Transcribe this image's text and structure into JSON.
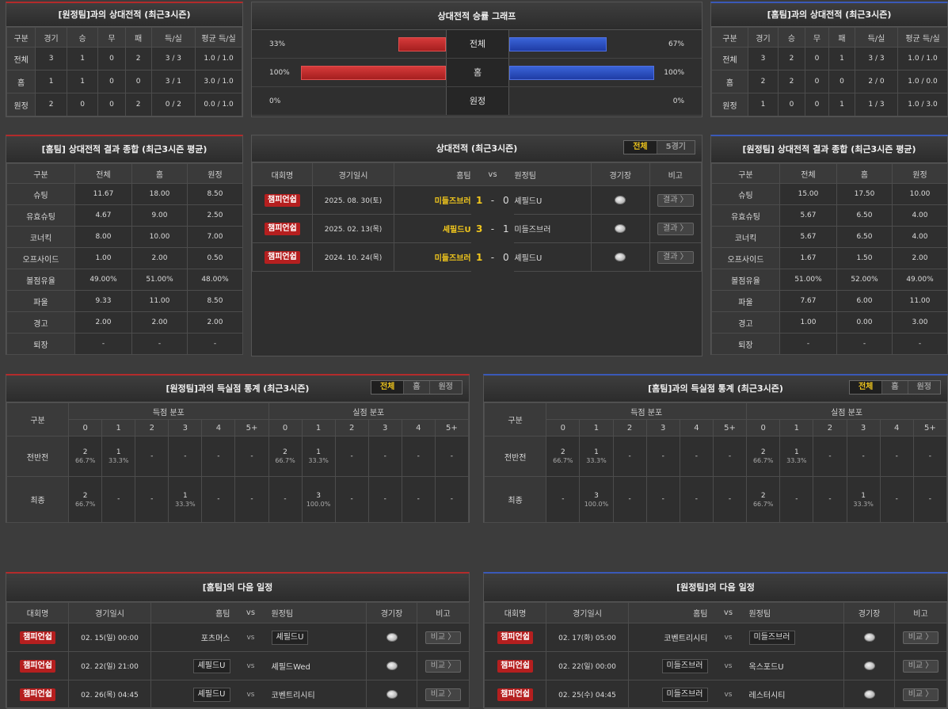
{
  "h2h_away": {
    "title": "[원정팀]과의 상대전적 (최근3시즌)",
    "headers": [
      "구분",
      "경기",
      "승",
      "무",
      "패",
      "득/실",
      "평균 득/실"
    ],
    "rows": [
      [
        "전체",
        "3",
        "1",
        "0",
        "2",
        "3 / 3",
        "1.0 / 1.0"
      ],
      [
        "홈",
        "1",
        "1",
        "0",
        "0",
        "3 / 1",
        "3.0 / 1.0"
      ],
      [
        "원정",
        "2",
        "0",
        "0",
        "2",
        "0 / 2",
        "0.0 / 1.0"
      ]
    ]
  },
  "graph": {
    "title": "상대전적 승률 그래프",
    "rows": [
      {
        "label": "전체",
        "left": "33%",
        "right": "67%",
        "lv": 33,
        "rv": 67
      },
      {
        "label": "홈",
        "left": "100%",
        "right": "100%",
        "lv": 100,
        "rv": 100
      },
      {
        "label": "원정",
        "left": "0%",
        "right": "0%",
        "lv": 0,
        "rv": 0
      }
    ],
    "colors": {
      "home": "#c62828",
      "away": "#2846c0"
    }
  },
  "h2h_home": {
    "title": "[홈팀]과의 상대전적 (최근3시즌)",
    "headers": [
      "구분",
      "경기",
      "승",
      "무",
      "패",
      "득/실",
      "평균 득/실"
    ],
    "rows": [
      [
        "전체",
        "3",
        "2",
        "0",
        "1",
        "3 / 3",
        "1.0 / 1.0"
      ],
      [
        "홈",
        "2",
        "2",
        "0",
        "0",
        "2 / 0",
        "1.0 / 0.0"
      ],
      [
        "원정",
        "1",
        "0",
        "0",
        "1",
        "1 / 3",
        "1.0 / 3.0"
      ]
    ]
  },
  "summary_home": {
    "title": "[홈팀] 상대전적 결과 종합 (최근3시즌 평균)",
    "headers": [
      "구분",
      "전체",
      "홈",
      "원정"
    ],
    "rows": [
      [
        "슈팅",
        "11.67",
        "18.00",
        "8.50"
      ],
      [
        "유효슈팅",
        "4.67",
        "9.00",
        "2.50"
      ],
      [
        "코너킥",
        "8.00",
        "10.00",
        "7.00"
      ],
      [
        "오프사이드",
        "1.00",
        "2.00",
        "0.50"
      ],
      [
        "볼점유율",
        "49.00%",
        "51.00%",
        "48.00%"
      ],
      [
        "파울",
        "9.33",
        "11.00",
        "8.50"
      ],
      [
        "경고",
        "2.00",
        "2.00",
        "2.00"
      ],
      [
        "퇴장",
        "-",
        "-",
        "-"
      ]
    ]
  },
  "recent": {
    "title": "상대전적 (최근3시즌)",
    "tabs": [
      "전체",
      "5경기"
    ],
    "headers": [
      "대회명",
      "경기일시",
      "홈팀",
      "vs",
      "원정팀",
      "경기장",
      "비고"
    ],
    "matches": [
      {
        "league": "챔피언쉽",
        "date": "2025. 08. 30(토)",
        "home": "미들즈브러",
        "hs": "1",
        "sep": "-",
        "as": "0",
        "away": "셰필드U",
        "btn": "결과 〉"
      },
      {
        "league": "챔피언쉽",
        "date": "2025. 02. 13(목)",
        "home": "셰필드U",
        "hs": "3",
        "sep": "-",
        "as": "1",
        "away": "미들즈브러",
        "btn": "결과 〉"
      },
      {
        "league": "챔피언쉽",
        "date": "2024. 10. 24(목)",
        "home": "미들즈브러",
        "hs": "1",
        "sep": "-",
        "as": "0",
        "away": "셰필드U",
        "btn": "결과 〉"
      }
    ]
  },
  "summary_away": {
    "title": "[원정팀] 상대전적 결과 종합 (최근3시즌 평균)",
    "headers": [
      "구분",
      "전체",
      "홈",
      "원정"
    ],
    "rows": [
      [
        "슈팅",
        "15.00",
        "17.50",
        "10.00"
      ],
      [
        "유효슈팅",
        "5.67",
        "6.50",
        "4.00"
      ],
      [
        "코너킥",
        "5.67",
        "6.50",
        "4.00"
      ],
      [
        "오프사이드",
        "1.67",
        "1.50",
        "2.00"
      ],
      [
        "볼점유율",
        "51.00%",
        "52.00%",
        "49.00%"
      ],
      [
        "파울",
        "7.67",
        "6.00",
        "11.00"
      ],
      [
        "경고",
        "1.00",
        "0.00",
        "3.00"
      ],
      [
        "퇴장",
        "-",
        "-",
        "-"
      ]
    ]
  },
  "goals_away": {
    "title": "[원정팀]과의 득실점 통계 (최근3시즌)",
    "tabs": [
      "전체",
      "홈",
      "원정"
    ],
    "h1": "구분",
    "scored": "득점 분포",
    "conceded": "실점 분포",
    "cols": [
      "0",
      "1",
      "2",
      "3",
      "4",
      "5+"
    ],
    "rows": [
      {
        "label": "전반전",
        "cells": [
          [
            "2",
            "66.7%"
          ],
          [
            "1",
            "33.3%"
          ],
          [
            "-",
            ""
          ],
          [
            "-",
            ""
          ],
          [
            "-",
            ""
          ],
          [
            "-",
            ""
          ],
          [
            "2",
            "66.7%"
          ],
          [
            "1",
            "33.3%"
          ],
          [
            "-",
            ""
          ],
          [
            "-",
            ""
          ],
          [
            "-",
            ""
          ],
          [
            "-",
            ""
          ]
        ]
      },
      {
        "label": "최종",
        "cells": [
          [
            "2",
            "66.7%"
          ],
          [
            "-",
            ""
          ],
          [
            "-",
            ""
          ],
          [
            "1",
            "33.3%"
          ],
          [
            "-",
            ""
          ],
          [
            "-",
            ""
          ],
          [
            "-",
            ""
          ],
          [
            "3",
            "100.0%"
          ],
          [
            "-",
            ""
          ],
          [
            "-",
            ""
          ],
          [
            "-",
            ""
          ],
          [
            "-",
            ""
          ]
        ]
      }
    ]
  },
  "goals_home": {
    "title": "[홈팀]과의 득실점 통계 (최근3시즌)",
    "tabs": [
      "전체",
      "홈",
      "원정"
    ],
    "h1": "구분",
    "scored": "득점 분포",
    "conceded": "실점 분포",
    "cols": [
      "0",
      "1",
      "2",
      "3",
      "4",
      "5+"
    ],
    "rows": [
      {
        "label": "전반전",
        "cells": [
          [
            "2",
            "66.7%"
          ],
          [
            "1",
            "33.3%"
          ],
          [
            "-",
            ""
          ],
          [
            "-",
            ""
          ],
          [
            "-",
            ""
          ],
          [
            "-",
            ""
          ],
          [
            "2",
            "66.7%"
          ],
          [
            "1",
            "33.3%"
          ],
          [
            "-",
            ""
          ],
          [
            "-",
            ""
          ],
          [
            "-",
            ""
          ],
          [
            "-",
            ""
          ]
        ]
      },
      {
        "label": "최종",
        "cells": [
          [
            "-",
            ""
          ],
          [
            "3",
            "100.0%"
          ],
          [
            "-",
            ""
          ],
          [
            "-",
            ""
          ],
          [
            "-",
            ""
          ],
          [
            "-",
            ""
          ],
          [
            "2",
            "66.7%"
          ],
          [
            "-",
            ""
          ],
          [
            "-",
            ""
          ],
          [
            "1",
            "33.3%"
          ],
          [
            "-",
            ""
          ],
          [
            "-",
            ""
          ]
        ]
      }
    ]
  },
  "next_home": {
    "title": "[홈팀]의 다음 일정",
    "headers": [
      "대회명",
      "경기일시",
      "홈팀",
      "vs",
      "원정팀",
      "경기장",
      "비고"
    ],
    "rows": [
      {
        "league": "챔피언쉽",
        "date": "02. 15(일) 00:00",
        "home": "포츠머스",
        "vs": "vs",
        "away": "셰필드U",
        "hb": false,
        "ab": true,
        "btn": "비교 〉"
      },
      {
        "league": "챔피언쉽",
        "date": "02. 22(일) 21:00",
        "home": "셰필드U",
        "vs": "vs",
        "away": "셰필드Wed",
        "hb": true,
        "ab": false,
        "btn": "비교 〉"
      },
      {
        "league": "챔피언쉽",
        "date": "02. 26(목) 04:45",
        "home": "셰필드U",
        "vs": "vs",
        "away": "코벤트리시티",
        "hb": true,
        "ab": false,
        "btn": "비교 〉"
      }
    ]
  },
  "next_away": {
    "title": "[원정팀]의 다음 일정",
    "headers": [
      "대회명",
      "경기일시",
      "홈팀",
      "vs",
      "원정팀",
      "경기장",
      "비고"
    ],
    "rows": [
      {
        "league": "챔피언쉽",
        "date": "02. 17(화) 05:00",
        "home": "코벤트리시티",
        "vs": "vs",
        "away": "미들즈브러",
        "hb": false,
        "ab": true,
        "btn": "비교 〉"
      },
      {
        "league": "챔피언쉽",
        "date": "02. 22(일) 00:00",
        "home": "미들즈브러",
        "vs": "vs",
        "away": "옥스포드U",
        "hb": true,
        "ab": false,
        "btn": "비교 〉"
      },
      {
        "league": "챔피언쉽",
        "date": "02. 25(수) 04:45",
        "home": "미들즈브러",
        "vs": "vs",
        "away": "레스터시티",
        "hb": true,
        "ab": false,
        "btn": "비교 〉"
      }
    ]
  }
}
